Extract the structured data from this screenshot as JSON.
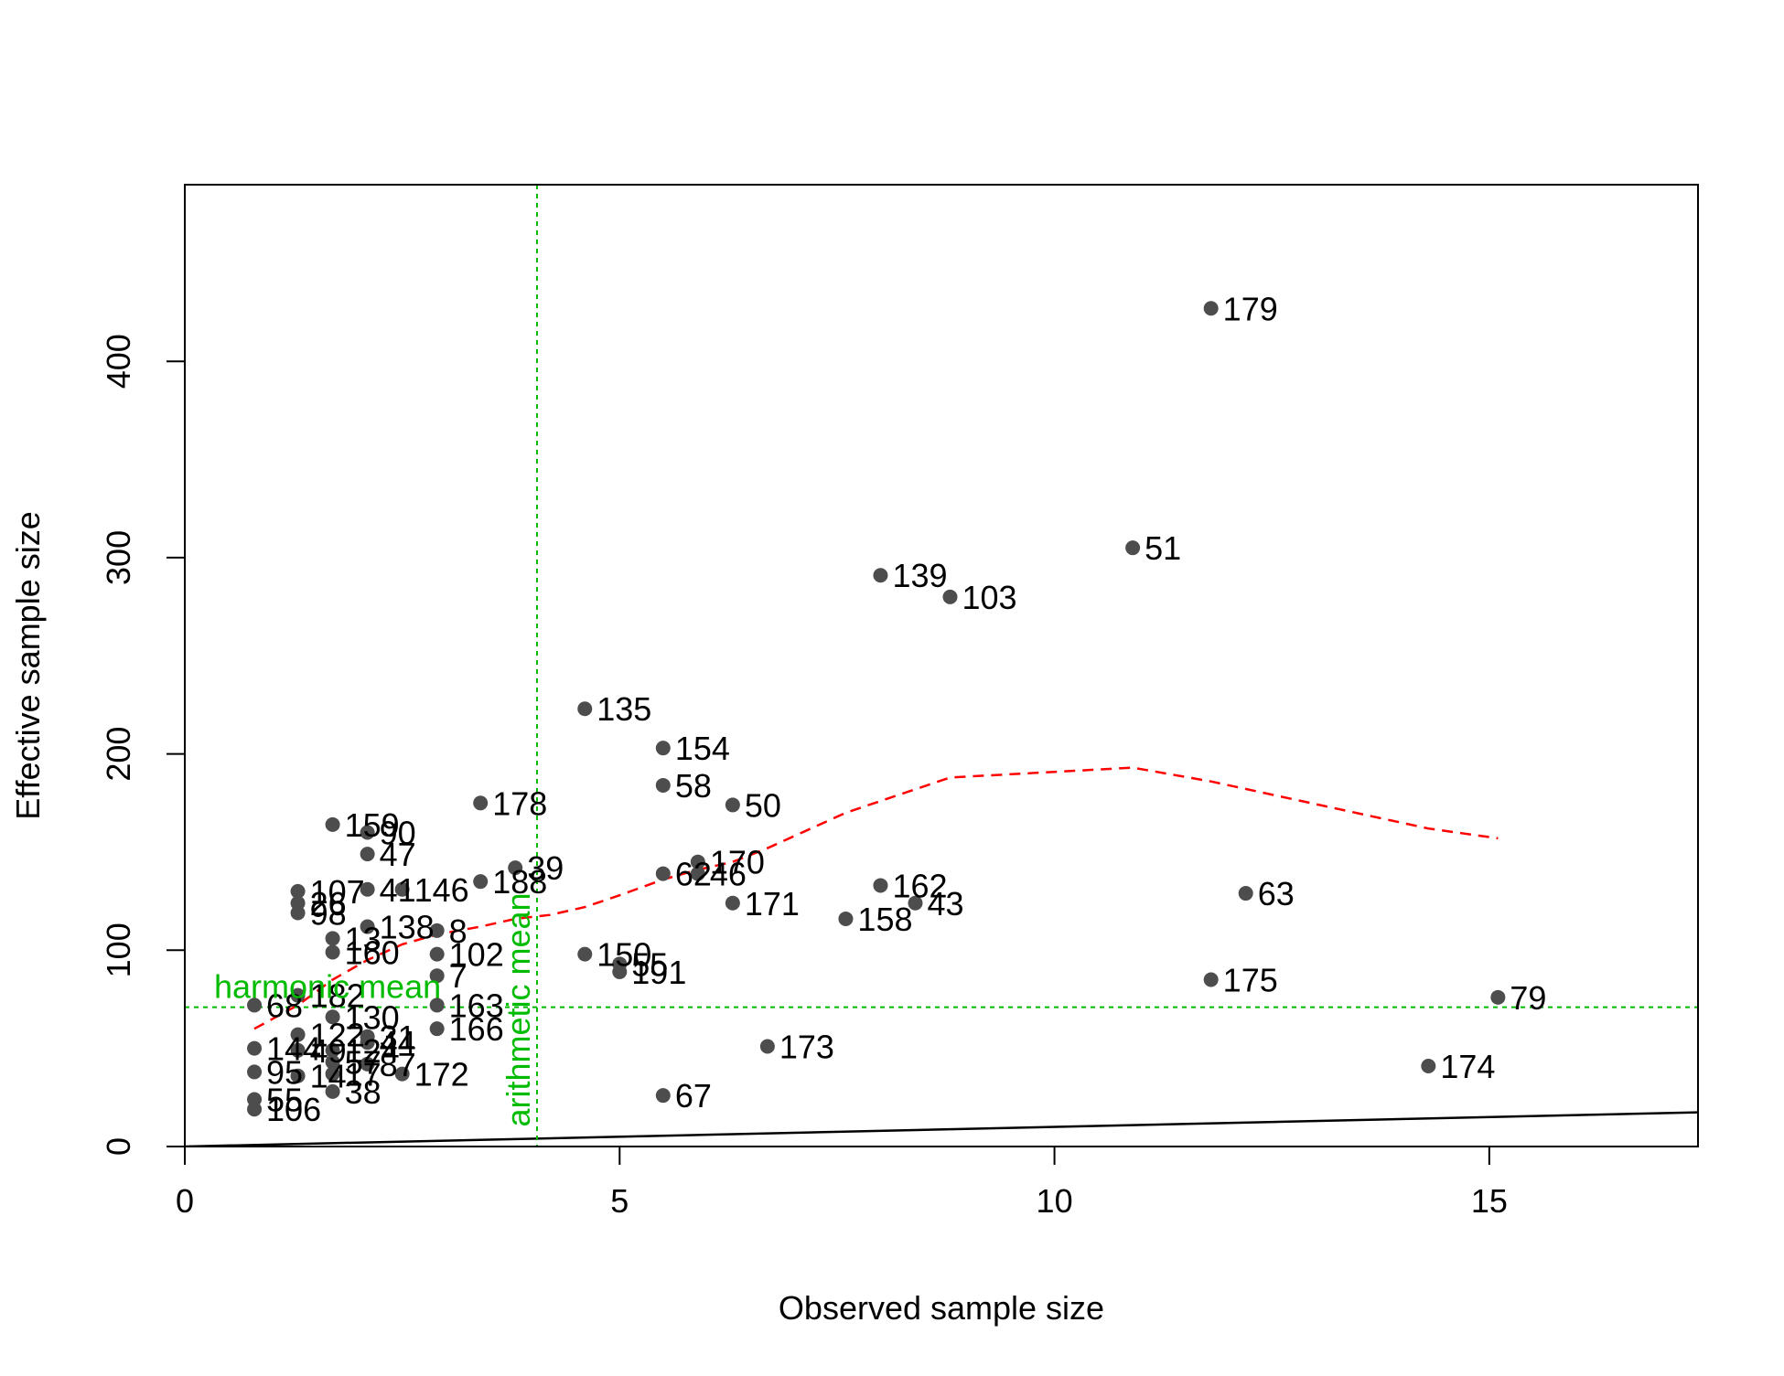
{
  "chart_data": {
    "type": "scatter",
    "title": "",
    "xlabel": "Observed sample size",
    "ylabel": "Effective sample size",
    "xlim": [
      0,
      17.4
    ],
    "ylim": [
      0,
      490
    ],
    "x_ticks": [
      0,
      5,
      10,
      15
    ],
    "y_ticks": [
      0,
      100,
      200,
      300,
      400
    ],
    "x_tick_labels": [
      "0",
      "5",
      "10",
      "15"
    ],
    "y_tick_labels": [
      "0",
      "100",
      "200",
      "300",
      "400"
    ],
    "grid": false,
    "legend": "none",
    "colors": {
      "points": "#4d4d4d",
      "reference_line": "#000000",
      "smoother": "#ff0000",
      "means": "#00bb00",
      "axis": "#000000"
    },
    "points": [
      {
        "label": "179",
        "x": 11.8,
        "y": 427
      },
      {
        "label": "51",
        "x": 10.9,
        "y": 305
      },
      {
        "label": "139",
        "x": 8.0,
        "y": 291
      },
      {
        "label": "103",
        "x": 8.8,
        "y": 280
      },
      {
        "label": "135",
        "x": 4.6,
        "y": 223
      },
      {
        "label": "154",
        "x": 5.5,
        "y": 203
      },
      {
        "label": "58",
        "x": 5.5,
        "y": 184
      },
      {
        "label": "50",
        "x": 6.3,
        "y": 174
      },
      {
        "label": "178",
        "x": 3.4,
        "y": 175
      },
      {
        "label": "159",
        "x": 1.7,
        "y": 164
      },
      {
        "label": "90",
        "x": 2.1,
        "y": 160
      },
      {
        "label": "47",
        "x": 2.1,
        "y": 149
      },
      {
        "label": "170",
        "x": 5.9,
        "y": 145
      },
      {
        "label": "39",
        "x": 3.8,
        "y": 142
      },
      {
        "label": "62",
        "x": 5.5,
        "y": 139
      },
      {
        "label": "46",
        "x": 5.9,
        "y": 139
      },
      {
        "label": "188",
        "x": 3.4,
        "y": 135
      },
      {
        "label": "162",
        "x": 8.0,
        "y": 133
      },
      {
        "label": "107",
        "x": 1.3,
        "y": 130
      },
      {
        "label": "41",
        "x": 2.1,
        "y": 131
      },
      {
        "label": "146",
        "x": 2.5,
        "y": 131
      },
      {
        "label": "63",
        "x": 12.2,
        "y": 129
      },
      {
        "label": "26",
        "x": 1.3,
        "y": 124
      },
      {
        "label": "171",
        "x": 6.3,
        "y": 124
      },
      {
        "label": "43",
        "x": 8.4,
        "y": 124
      },
      {
        "label": "98",
        "x": 1.3,
        "y": 119
      },
      {
        "label": "158",
        "x": 7.6,
        "y": 116
      },
      {
        "label": "138",
        "x": 2.1,
        "y": 112
      },
      {
        "label": "8",
        "x": 2.9,
        "y": 110
      },
      {
        "label": "13",
        "x": 1.7,
        "y": 106
      },
      {
        "label": "160",
        "x": 1.7,
        "y": 99
      },
      {
        "label": "102",
        "x": 2.9,
        "y": 98
      },
      {
        "label": "150",
        "x": 4.6,
        "y": 98
      },
      {
        "label": "55",
        "x": 5.0,
        "y": 93
      },
      {
        "label": "191",
        "x": 5.0,
        "y": 89
      },
      {
        "label": "7",
        "x": 2.9,
        "y": 87
      },
      {
        "label": "175",
        "x": 11.8,
        "y": 85
      },
      {
        "label": "79",
        "x": 15.1,
        "y": 76
      },
      {
        "label": "182",
        "x": 1.3,
        "y": 77
      },
      {
        "label": "68",
        "x": 0.8,
        "y": 72
      },
      {
        "label": "163",
        "x": 2.9,
        "y": 72
      },
      {
        "label": "130",
        "x": 1.7,
        "y": 66
      },
      {
        "label": "166",
        "x": 2.9,
        "y": 60
      },
      {
        "label": "122",
        "x": 1.3,
        "y": 57
      },
      {
        "label": "31",
        "x": 2.1,
        "y": 56
      },
      {
        "label": "44",
        "x": 2.1,
        "y": 53
      },
      {
        "label": "173",
        "x": 6.7,
        "y": 51
      },
      {
        "label": "144",
        "x": 0.8,
        "y": 50
      },
      {
        "label": "49",
        "x": 1.3,
        "y": 49
      },
      {
        "label": "124",
        "x": 1.7,
        "y": 49
      },
      {
        "label": "57",
        "x": 1.7,
        "y": 43
      },
      {
        "label": "87",
        "x": 2.1,
        "y": 42
      },
      {
        "label": "174",
        "x": 14.3,
        "y": 41
      },
      {
        "label": "95",
        "x": 0.8,
        "y": 38
      },
      {
        "label": "14",
        "x": 1.3,
        "y": 36
      },
      {
        "label": "172",
        "x": 2.5,
        "y": 37
      },
      {
        "label": "17",
        "x": 1.7,
        "y": 37
      },
      {
        "label": "38",
        "x": 1.7,
        "y": 28
      },
      {
        "label": "67",
        "x": 5.5,
        "y": 26
      },
      {
        "label": "55",
        "x": 0.8,
        "y": 24
      },
      {
        "label": "106",
        "x": 0.8,
        "y": 19
      }
    ],
    "reference_line": {
      "description": "y = x",
      "from": [
        0,
        0
      ],
      "to": [
        17.4,
        17.4
      ]
    },
    "smoother": [
      {
        "x": 0.8,
        "y": 60
      },
      {
        "x": 1.3,
        "y": 72
      },
      {
        "x": 1.7,
        "y": 85
      },
      {
        "x": 2.1,
        "y": 95
      },
      {
        "x": 2.5,
        "y": 103
      },
      {
        "x": 2.9,
        "y": 108
      },
      {
        "x": 3.4,
        "y": 112
      },
      {
        "x": 3.8,
        "y": 116
      },
      {
        "x": 4.2,
        "y": 118
      },
      {
        "x": 4.6,
        "y": 122
      },
      {
        "x": 5.0,
        "y": 128
      },
      {
        "x": 5.5,
        "y": 136
      },
      {
        "x": 5.9,
        "y": 141
      },
      {
        "x": 6.3,
        "y": 145
      },
      {
        "x": 6.7,
        "y": 152
      },
      {
        "x": 7.6,
        "y": 170
      },
      {
        "x": 8.8,
        "y": 188
      },
      {
        "x": 10.9,
        "y": 193
      },
      {
        "x": 11.8,
        "y": 186
      },
      {
        "x": 14.3,
        "y": 162
      },
      {
        "x": 15.1,
        "y": 157
      }
    ],
    "harmonic_mean": {
      "label": "harmonic mean",
      "value": 71
    },
    "arithmetic_mean": {
      "label": "arithmetic mean",
      "value": 4.05
    }
  }
}
